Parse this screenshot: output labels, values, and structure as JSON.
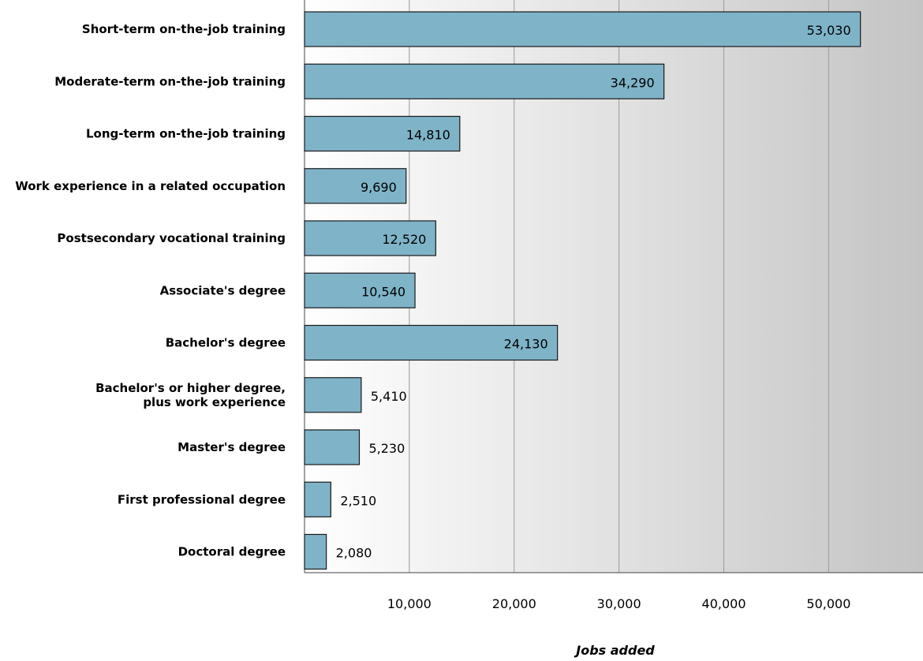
{
  "chart_data": {
    "type": "bar",
    "orientation": "horizontal",
    "categories": [
      [
        "Short-term on-the-job training"
      ],
      [
        "Moderate-term on-the-job training"
      ],
      [
        "Long-term on-the-job training"
      ],
      [
        "Work experience in a related occupation"
      ],
      [
        "Postsecondary vocational training"
      ],
      [
        "Associate's degree"
      ],
      [
        "Bachelor's degree"
      ],
      [
        "Bachelor's or higher degree,",
        "plus work experience"
      ],
      [
        "Master's degree"
      ],
      [
        "First professional degree"
      ],
      [
        "Doctoral degree"
      ]
    ],
    "values": [
      53030,
      34290,
      14810,
      9690,
      12520,
      10540,
      24130,
      5410,
      5230,
      2510,
      2080
    ],
    "data_labels": [
      "53,030",
      "34,290",
      "14,810",
      "9,690",
      "12,520",
      "10,540",
      "24,130",
      "5,410",
      "5,230",
      "2,510",
      "2,080"
    ],
    "xlabel": "Jobs added",
    "xlim": [
      0,
      59000
    ],
    "xticks": [
      10000,
      20000,
      30000,
      40000,
      50000
    ],
    "xtick_labels": [
      "10,000",
      "20,000",
      "30,000",
      "40,000",
      "50,000"
    ],
    "grid": "vertical",
    "background": "gradient white-to-gray",
    "colors": {
      "bar_fill": "#7fb3c8",
      "bar_stroke": "#1a1a1a",
      "grid": "#9a9a9a",
      "bg_start": "#ffffff",
      "bg_end": "#c4c4c4"
    }
  }
}
